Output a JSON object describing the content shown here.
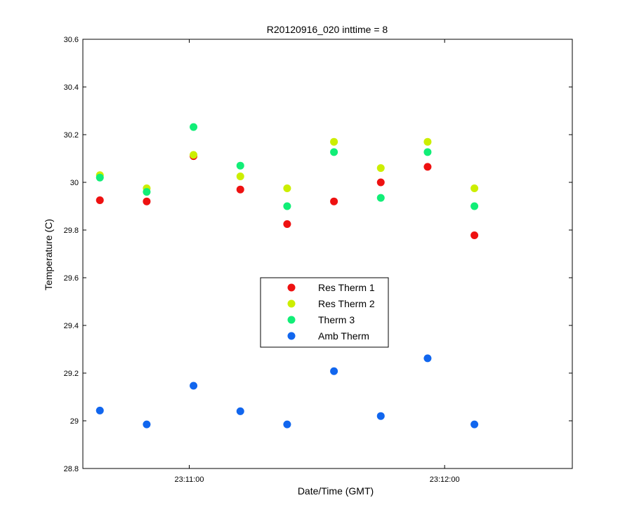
{
  "chart_data": {
    "type": "scatter",
    "title": "R20120916_020 inttime = 8",
    "xlabel": "Date/Time (GMT)",
    "ylabel": "Temperature (C)",
    "xlim": [
      "23:10:35",
      "23:12:30"
    ],
    "ylim": [
      28.8,
      30.6
    ],
    "x_ticks": [
      "23:11:00",
      "23:12:00"
    ],
    "y_ticks": [
      "28.8",
      "29",
      "29.2",
      "29.4",
      "29.6",
      "29.8",
      "30",
      "30.2",
      "30.4",
      "30.6"
    ],
    "x": [
      "23:10:39",
      "23:10:50",
      "23:11:01",
      "23:11:12",
      "23:11:23",
      "23:11:34",
      "23:11:45",
      "23:11:56",
      "23:12:07"
    ],
    "grid": false,
    "legend_position": "center",
    "series": [
      {
        "name": "Res Therm 1",
        "color": "#ee1111",
        "values": [
          29.925,
          29.92,
          30.11,
          29.97,
          29.825,
          29.92,
          30.0,
          30.065,
          29.778
        ]
      },
      {
        "name": "Res Therm 2",
        "color": "#ccee00",
        "values": [
          30.03,
          29.975,
          30.115,
          30.025,
          29.975,
          30.17,
          30.06,
          30.17,
          29.975
        ]
      },
      {
        "name": "Therm 3",
        "color": "#11ee77",
        "values": [
          30.02,
          29.96,
          30.232,
          30.07,
          29.9,
          30.127,
          29.935,
          30.127,
          29.9
        ]
      },
      {
        "name": "Amb Therm",
        "color": "#1166ee",
        "values": [
          29.043,
          28.985,
          29.147,
          29.04,
          28.985,
          29.208,
          29.02,
          29.262,
          28.985
        ]
      }
    ]
  }
}
